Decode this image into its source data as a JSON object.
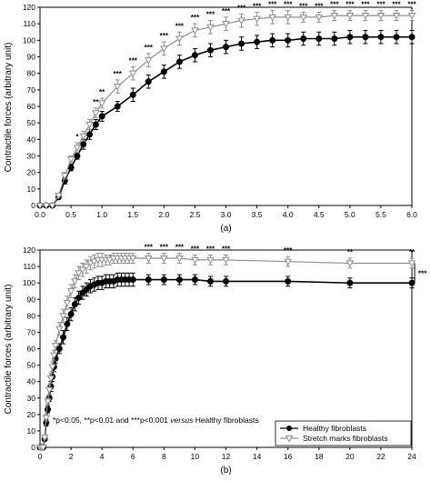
{
  "ylabel": "Contractile forces (arbitrary unit)",
  "legend": [
    "Healthy fibroblasts",
    "Stretch marks fibroblasts"
  ],
  "note_parts": [
    "*p<0.05, **p<0.01 and ***p<0.001 ",
    "versus",
    " Healthy fibroblasts"
  ],
  "bracket_star": "***",
  "colors": {
    "healthy": "#000000",
    "stretch": "#8c8c8c"
  },
  "chart_data": [
    {
      "type": "line",
      "panel_label": "(a)",
      "ylabel": "Contractile forces (arbitrary unit)",
      "xlim": [
        0,
        6
      ],
      "ylim": [
        0,
        120
      ],
      "xticks": [
        "0.0",
        "0.5",
        "1.0",
        "1.5",
        "2.0",
        "2.5",
        "3.0",
        "3.5",
        "4.0",
        "4.5",
        "5.0",
        "5.5",
        "6.0"
      ],
      "yticks": [
        "0",
        "10",
        "20",
        "30",
        "40",
        "50",
        "60",
        "70",
        "80",
        "90",
        "100",
        "110",
        "120"
      ],
      "series": [
        {
          "name": "Healthy fibroblasts",
          "x": [
            0,
            0.1,
            0.2,
            0.3,
            0.4,
            0.5,
            0.6,
            0.7,
            0.8,
            0.9,
            1.0,
            1.25,
            1.5,
            1.75,
            2.0,
            2.25,
            2.5,
            2.75,
            3.0,
            3.25,
            3.5,
            3.75,
            4.0,
            4.25,
            4.5,
            4.75,
            5.0,
            5.25,
            5.5,
            5.75,
            6.0
          ],
          "y": [
            0,
            0,
            0,
            5,
            15,
            23,
            30,
            37,
            43,
            49,
            54,
            60,
            67,
            75,
            81,
            87,
            91,
            94,
            96,
            98,
            99,
            100,
            100,
            101,
            101,
            101,
            102,
            102,
            102,
            102,
            102
          ],
          "err": [
            0,
            0,
            0,
            1,
            2,
            2,
            2,
            3,
            3,
            3,
            3,
            3,
            4,
            4,
            4,
            4,
            4,
            4,
            4,
            4,
            4,
            4,
            4,
            4,
            4,
            4,
            4,
            4,
            4,
            4,
            4
          ]
        },
        {
          "name": "Stretch marks fibroblasts",
          "x": [
            0,
            0.1,
            0.2,
            0.3,
            0.4,
            0.5,
            0.6,
            0.7,
            0.8,
            0.9,
            1.0,
            1.25,
            1.5,
            1.75,
            2.0,
            2.25,
            2.5,
            2.75,
            3.0,
            3.25,
            3.5,
            3.75,
            4.0,
            4.25,
            4.5,
            4.75,
            5.0,
            5.25,
            5.5,
            5.75,
            6.0
          ],
          "y": [
            0,
            0,
            0,
            6,
            18,
            28,
            35,
            42,
            49,
            56,
            62,
            72,
            80,
            88,
            95,
            101,
            106,
            108,
            110,
            112,
            113,
            114,
            114,
            114,
            114,
            115,
            115,
            115,
            115,
            115,
            115
          ],
          "err": [
            0,
            0,
            0,
            1,
            2,
            2,
            3,
            3,
            3,
            3,
            3,
            4,
            4,
            4,
            4,
            4,
            4,
            4,
            4,
            4,
            4,
            4,
            4,
            3,
            3,
            3,
            3,
            3,
            3,
            3,
            3
          ]
        }
      ],
      "annotations": [
        {
          "x": 0.6,
          "label": "*"
        },
        {
          "x": 0.9,
          "label": "**"
        },
        {
          "x": 1.0,
          "label": "**"
        },
        {
          "x": 1.25,
          "label": "***"
        },
        {
          "x": 1.5,
          "label": "***"
        },
        {
          "x": 1.75,
          "label": "***"
        },
        {
          "x": 2.0,
          "label": "***"
        },
        {
          "x": 2.25,
          "label": "***"
        },
        {
          "x": 2.5,
          "label": "***"
        },
        {
          "x": 2.75,
          "label": "***"
        },
        {
          "x": 3.0,
          "label": "***"
        },
        {
          "x": 3.25,
          "label": "***"
        },
        {
          "x": 3.5,
          "label": "***"
        },
        {
          "x": 3.75,
          "label": "***"
        },
        {
          "x": 4.0,
          "label": "***"
        },
        {
          "x": 4.25,
          "label": "***"
        },
        {
          "x": 4.5,
          "label": "***"
        },
        {
          "x": 4.75,
          "label": "***"
        },
        {
          "x": 5.0,
          "label": "***"
        },
        {
          "x": 5.25,
          "label": "***"
        },
        {
          "x": 5.5,
          "label": "***"
        },
        {
          "x": 5.75,
          "label": "***"
        },
        {
          "x": 6.0,
          "label": "***"
        }
      ]
    },
    {
      "type": "line",
      "panel_label": "(b)",
      "ylabel": "Contractile forces (arbitrary unit)",
      "xlim": [
        0,
        24
      ],
      "ylim": [
        0,
        120
      ],
      "xticks": [
        "0",
        "2",
        "4",
        "6",
        "8",
        "10",
        "12",
        "14",
        "16",
        "18",
        "20",
        "22",
        "24"
      ],
      "yticks": [
        "0",
        "10",
        "20",
        "30",
        "40",
        "50",
        "60",
        "70",
        "80",
        "90",
        "100",
        "110",
        "120"
      ],
      "series": [
        {
          "name": "Healthy fibroblasts",
          "x": [
            0,
            0.1,
            0.2,
            0.3,
            0.4,
            0.5,
            0.6,
            0.7,
            0.8,
            0.9,
            1.0,
            1.25,
            1.5,
            1.75,
            2.0,
            2.25,
            2.5,
            2.75,
            3.0,
            3.25,
            3.5,
            3.75,
            4.0,
            4.25,
            4.5,
            4.75,
            5.0,
            5.25,
            5.5,
            5.75,
            6.0,
            7,
            8,
            9,
            10,
            11,
            12,
            16,
            20,
            24
          ],
          "y": [
            0,
            0,
            0,
            5,
            15,
            23,
            30,
            37,
            43,
            49,
            54,
            60,
            67,
            75,
            81,
            87,
            91,
            94,
            96,
            98,
            99,
            100,
            100,
            101,
            101,
            101,
            102,
            102,
            102,
            102,
            102,
            102,
            102,
            102,
            102,
            101,
            101,
            101,
            100,
            100
          ],
          "err": [
            0,
            0,
            0,
            1,
            2,
            2,
            2,
            3,
            3,
            3,
            3,
            3,
            4,
            4,
            4,
            4,
            4,
            4,
            4,
            4,
            4,
            4,
            4,
            4,
            4,
            4,
            4,
            4,
            4,
            4,
            4,
            3,
            3,
            3,
            3,
            3,
            3,
            3,
            3,
            3
          ]
        },
        {
          "name": "Stretch marks fibroblasts",
          "x": [
            0,
            0.1,
            0.2,
            0.3,
            0.4,
            0.5,
            0.6,
            0.7,
            0.8,
            0.9,
            1.0,
            1.25,
            1.5,
            1.75,
            2.0,
            2.25,
            2.5,
            2.75,
            3.0,
            3.25,
            3.5,
            3.75,
            4.0,
            4.25,
            4.5,
            4.75,
            5.0,
            5.25,
            5.5,
            5.75,
            6.0,
            7,
            8,
            9,
            10,
            11,
            12,
            16,
            20,
            24
          ],
          "y": [
            0,
            0,
            0,
            6,
            18,
            28,
            35,
            42,
            49,
            56,
            62,
            72,
            80,
            88,
            95,
            101,
            106,
            108,
            110,
            112,
            113,
            114,
            114,
            114,
            114,
            115,
            115,
            115,
            115,
            115,
            115,
            115,
            115,
            115,
            114,
            114,
            114,
            113,
            112,
            112
          ],
          "err": [
            0,
            0,
            0,
            1,
            2,
            2,
            3,
            3,
            3,
            3,
            3,
            4,
            4,
            4,
            4,
            4,
            4,
            4,
            4,
            4,
            4,
            4,
            4,
            3,
            3,
            3,
            3,
            3,
            3,
            3,
            3,
            3,
            3,
            3,
            3,
            3,
            3,
            3,
            3,
            3
          ]
        }
      ],
      "annotations": [
        {
          "x": 7,
          "label": "***"
        },
        {
          "x": 8,
          "label": "***"
        },
        {
          "x": 9,
          "label": "***"
        },
        {
          "x": 10,
          "label": "***"
        },
        {
          "x": 11,
          "label": "***"
        },
        {
          "x": 12,
          "label": "***"
        },
        {
          "x": 16,
          "label": "***"
        },
        {
          "x": 20,
          "label": "**"
        },
        {
          "x": 24,
          "label": "**"
        }
      ]
    }
  ]
}
